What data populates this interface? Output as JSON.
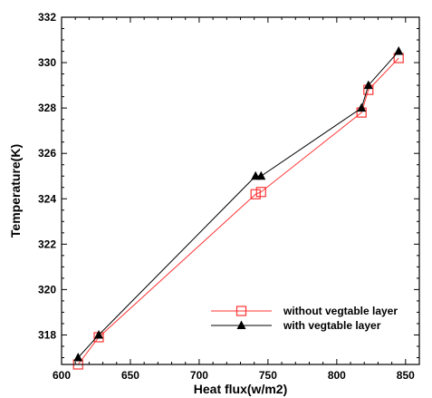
{
  "chart_data": {
    "type": "line",
    "xlabel": "Heat flux(w/m2)",
    "ylabel": "Temperature(K)",
    "xlim": [
      600,
      860
    ],
    "ylim": [
      316.7,
      332
    ],
    "xticks": [
      600,
      650,
      700,
      750,
      800,
      850
    ],
    "yticks": [
      318,
      320,
      322,
      324,
      326,
      328,
      330,
      332
    ],
    "grid": false,
    "legend_position": "bottom-right",
    "series": [
      {
        "name": "without vegtable layer",
        "color": "#ff3333",
        "marker": "open-square",
        "x": [
          612,
          627,
          741,
          745,
          818,
          823,
          845
        ],
        "y": [
          316.7,
          317.9,
          324.2,
          324.3,
          327.8,
          328.8,
          330.2
        ]
      },
      {
        "name": "with vegtable layer",
        "color": "#000000",
        "marker": "filled-triangle",
        "x": [
          612,
          627,
          741,
          745,
          818,
          823,
          845
        ],
        "y": [
          317.0,
          318.0,
          325.0,
          325.0,
          328.0,
          329.0,
          330.5
        ]
      }
    ]
  }
}
